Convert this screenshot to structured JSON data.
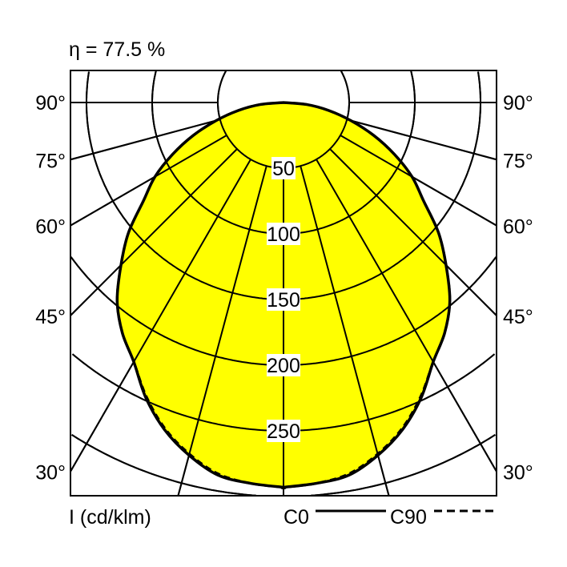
{
  "chart_data": {
    "type": "polar",
    "title": "η = 77.5 %",
    "unit_label": "I (cd/klm)",
    "radial_ticks": [
      50,
      100,
      150,
      200,
      250
    ],
    "radial_circles": [
      50,
      100,
      150,
      200,
      250,
      300
    ],
    "angle_labels": [
      "90°",
      "75°",
      "60°",
      "45°",
      "30°"
    ],
    "angles_deg": [
      0,
      5,
      10,
      15,
      20,
      25,
      30,
      35,
      40,
      45,
      50,
      55,
      60,
      65,
      70,
      75,
      80,
      85,
      90
    ],
    "series": [
      {
        "name": "C0",
        "style": "solid",
        "values": [
          293,
          291,
          288,
          278,
          265,
          248,
          228,
          214,
          197,
          175,
          154,
          130,
          113,
          93,
          73,
          53,
          35,
          18,
          0
        ]
      },
      {
        "name": "C90",
        "style": "dashed",
        "values": [
          293,
          291,
          287,
          277,
          264,
          247,
          228,
          214,
          197,
          175,
          154,
          130,
          113,
          93,
          73,
          53,
          35,
          18,
          0
        ]
      }
    ],
    "fill_color": "#ffff00",
    "grid": true
  }
}
